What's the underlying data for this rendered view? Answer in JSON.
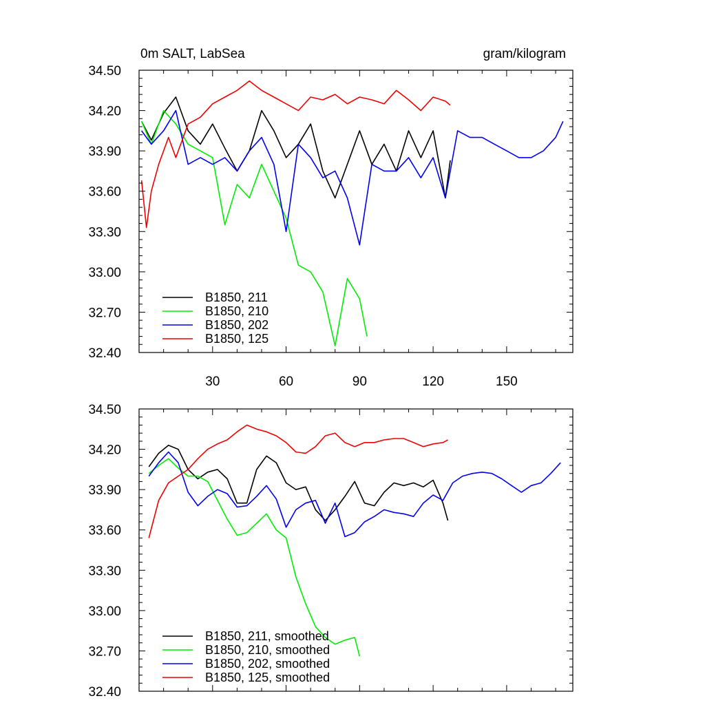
{
  "chart_data": [
    {
      "type": "line",
      "title_left": "0m SALT, LabSea",
      "title_right": "gram/kilogram",
      "xlim": [
        0,
        177
      ],
      "ylim": [
        32.4,
        34.5
      ],
      "xticks": [
        30,
        60,
        90,
        120,
        150
      ],
      "xtick_labels": [
        "30",
        "60",
        "90",
        "120",
        "150"
      ],
      "yticks": [
        32.4,
        32.7,
        33.0,
        33.3,
        33.6,
        33.9,
        34.2,
        34.5
      ],
      "ytick_labels": [
        "32.40",
        "32.70",
        "33.00",
        "33.30",
        "33.60",
        "33.90",
        "34.20",
        "34.50"
      ],
      "series": [
        {
          "name": "B1850, 211",
          "color": "#000000",
          "x": [
            1,
            5,
            10,
            15,
            20,
            25,
            30,
            35,
            40,
            45,
            50,
            55,
            60,
            65,
            70,
            75,
            80,
            85,
            90,
            95,
            100,
            105,
            110,
            115,
            120,
            125,
            127
          ],
          "values": [
            34.12,
            33.98,
            34.18,
            34.3,
            34.05,
            33.95,
            34.1,
            33.92,
            33.75,
            33.9,
            34.2,
            34.05,
            33.85,
            33.95,
            34.1,
            33.75,
            33.55,
            33.8,
            34.05,
            33.8,
            33.95,
            33.75,
            34.05,
            33.85,
            34.05,
            33.55,
            33.83
          ]
        },
        {
          "name": "B1850, 210",
          "color": "#00ee00",
          "x": [
            1,
            5,
            10,
            15,
            20,
            25,
            30,
            35,
            40,
            45,
            50,
            55,
            60,
            65,
            70,
            75,
            80,
            85,
            90,
            93
          ],
          "values": [
            34.12,
            33.95,
            34.2,
            34.1,
            33.95,
            33.9,
            33.85,
            33.35,
            33.65,
            33.55,
            33.8,
            33.6,
            33.4,
            33.05,
            33.0,
            32.85,
            32.45,
            32.95,
            32.8,
            32.52
          ]
        },
        {
          "name": "B1850, 202",
          "color": "#0000ee",
          "x": [
            1,
            5,
            10,
            15,
            20,
            25,
            30,
            35,
            40,
            45,
            50,
            55,
            60,
            65,
            70,
            75,
            80,
            85,
            90,
            95,
            100,
            105,
            110,
            115,
            120,
            125,
            130,
            135,
            140,
            145,
            150,
            155,
            160,
            165,
            170,
            173
          ],
          "values": [
            34.05,
            33.95,
            34.05,
            34.2,
            33.8,
            33.85,
            33.8,
            33.85,
            33.75,
            33.9,
            34.0,
            33.8,
            33.3,
            33.95,
            33.85,
            33.7,
            33.75,
            33.55,
            33.2,
            33.8,
            33.75,
            33.75,
            33.85,
            33.7,
            33.85,
            33.55,
            34.05,
            34.0,
            34.0,
            33.95,
            33.9,
            33.85,
            33.85,
            33.9,
            34.0,
            34.12
          ]
        },
        {
          "name": "B1850, 125",
          "color": "#ee0000",
          "x": [
            1,
            3,
            5,
            8,
            12,
            15,
            20,
            25,
            30,
            35,
            40,
            45,
            50,
            55,
            60,
            65,
            70,
            75,
            80,
            85,
            90,
            95,
            100,
            105,
            110,
            115,
            120,
            125,
            127
          ],
          "values": [
            33.68,
            33.33,
            33.6,
            33.8,
            34.0,
            33.85,
            34.1,
            34.15,
            34.25,
            34.3,
            34.35,
            34.42,
            34.35,
            34.3,
            34.25,
            34.2,
            34.3,
            34.28,
            34.32,
            34.25,
            34.3,
            34.28,
            34.25,
            34.35,
            34.28,
            34.2,
            34.3,
            34.27,
            34.24
          ]
        }
      ]
    },
    {
      "type": "line",
      "title_left": "",
      "title_right": "",
      "xlim": [
        0,
        177
      ],
      "ylim": [
        32.4,
        34.5
      ],
      "xticks": [
        30,
        60,
        90,
        120,
        150
      ],
      "xtick_labels": [],
      "yticks": [
        32.4,
        32.7,
        33.0,
        33.3,
        33.6,
        33.9,
        34.2,
        34.5
      ],
      "ytick_labels": [
        "32.40",
        "32.70",
        "33.00",
        "33.30",
        "33.60",
        "33.90",
        "34.20",
        "34.50"
      ],
      "series": [
        {
          "name": "B1850, 211, smoothed",
          "color": "#000000",
          "x": [
            4,
            8,
            12,
            16,
            20,
            24,
            28,
            32,
            36,
            40,
            44,
            48,
            52,
            56,
            60,
            64,
            68,
            72,
            76,
            80,
            84,
            88,
            92,
            96,
            100,
            104,
            108,
            112,
            116,
            120,
            124,
            126
          ],
          "values": [
            34.07,
            34.17,
            34.23,
            34.2,
            34.05,
            33.98,
            34.03,
            34.05,
            33.98,
            33.8,
            33.8,
            34.05,
            34.15,
            34.1,
            33.95,
            33.9,
            33.92,
            33.75,
            33.67,
            33.75,
            33.85,
            33.96,
            33.8,
            33.78,
            33.88,
            33.95,
            33.93,
            33.95,
            33.92,
            33.97,
            33.8,
            33.67
          ]
        },
        {
          "name": "B1850, 210, smoothed",
          "color": "#00ee00",
          "x": [
            4,
            8,
            12,
            16,
            20,
            24,
            28,
            32,
            36,
            40,
            44,
            48,
            52,
            56,
            60,
            64,
            68,
            72,
            76,
            80,
            84,
            88,
            90
          ],
          "values": [
            34.02,
            34.08,
            34.13,
            34.06,
            34.0,
            34.0,
            33.96,
            33.82,
            33.68,
            33.56,
            33.58,
            33.65,
            33.72,
            33.6,
            33.54,
            33.25,
            33.05,
            32.88,
            32.8,
            32.75,
            32.78,
            32.8,
            32.66
          ]
        },
        {
          "name": "B1850, 202, smoothed",
          "color": "#0000ee",
          "x": [
            4,
            8,
            12,
            16,
            20,
            24,
            28,
            32,
            36,
            40,
            44,
            48,
            52,
            56,
            60,
            64,
            68,
            72,
            76,
            80,
            84,
            88,
            92,
            96,
            100,
            104,
            108,
            112,
            116,
            120,
            124,
            128,
            132,
            136,
            140,
            144,
            148,
            152,
            156,
            160,
            164,
            168,
            172
          ],
          "values": [
            34.0,
            34.1,
            34.18,
            34.1,
            33.88,
            33.78,
            33.85,
            33.9,
            33.87,
            33.77,
            33.78,
            33.85,
            33.93,
            33.83,
            33.62,
            33.75,
            33.8,
            33.82,
            33.65,
            33.8,
            33.55,
            33.58,
            33.66,
            33.7,
            33.75,
            33.73,
            33.72,
            33.7,
            33.8,
            33.86,
            33.82,
            33.95,
            34.0,
            34.02,
            34.03,
            34.02,
            33.98,
            33.93,
            33.88,
            33.93,
            33.95,
            34.02,
            34.1
          ]
        },
        {
          "name": "B1850, 125, smoothed",
          "color": "#ee0000",
          "x": [
            4,
            8,
            12,
            16,
            20,
            24,
            28,
            32,
            36,
            40,
            44,
            48,
            52,
            56,
            60,
            64,
            68,
            72,
            76,
            80,
            84,
            88,
            92,
            96,
            100,
            104,
            108,
            112,
            116,
            120,
            124,
            126
          ],
          "values": [
            33.54,
            33.82,
            33.95,
            34.0,
            34.05,
            34.13,
            34.2,
            34.24,
            34.27,
            34.33,
            34.38,
            34.35,
            34.33,
            34.3,
            34.25,
            34.18,
            34.17,
            34.22,
            34.3,
            34.32,
            34.25,
            34.22,
            34.25,
            34.25,
            34.27,
            34.28,
            34.28,
            34.25,
            34.22,
            34.24,
            34.25,
            34.27
          ]
        }
      ]
    }
  ]
}
